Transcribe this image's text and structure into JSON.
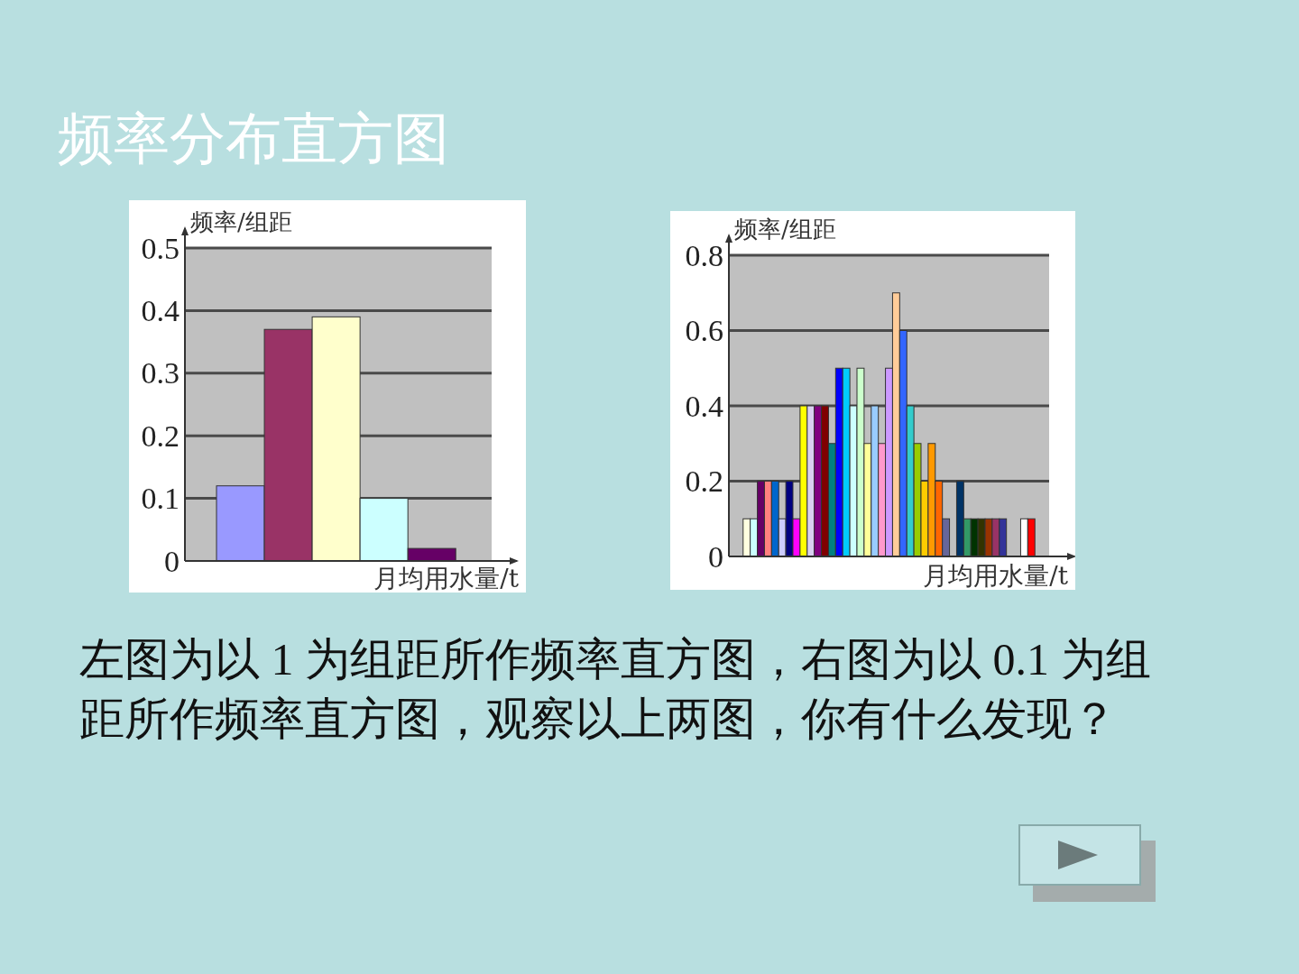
{
  "chart_data": [
    {
      "type": "other",
      "title": "频率分布直方图",
      "annotations": [
        "左图为以 1 为组距所作频率直方图，右图为以 0.1 为组距所作频率直方图，观察以上两图，你有什么发现？"
      ]
    },
    {
      "type": "bar",
      "ylabel": "频率/组距",
      "xlabel": "月均用水量/t",
      "categories": [
        null,
        null,
        null,
        null,
        null
      ],
      "values": [
        0.12,
        0.37,
        0.39,
        0.1,
        0.02
      ],
      "colors": [
        "#9999ff",
        "#993366",
        "#ffffcc",
        "#ccffff",
        "#660066"
      ],
      "ylim": [
        0,
        0.5
      ],
      "yticks": [
        0,
        0.1,
        0.2,
        0.3,
        0.4,
        0.5
      ],
      "grid": "y"
    },
    {
      "type": "bar",
      "ylabel": "频率/组距",
      "xlabel": "月均用水量/t",
      "categories": [
        null,
        null,
        null,
        null,
        null,
        null,
        null,
        null,
        null,
        null,
        null,
        null,
        null,
        null,
        null,
        null,
        null,
        null,
        null,
        null,
        null,
        null,
        null,
        null,
        null,
        null,
        null,
        null,
        null,
        null,
        null,
        null,
        null,
        null,
        null,
        null,
        null,
        null,
        null,
        null,
        null,
        null,
        null,
        null,
        null
      ],
      "values": [
        null,
        null,
        0.1,
        0.1,
        0.2,
        0.2,
        0.2,
        0.1,
        0.2,
        0.1,
        0.4,
        0.4,
        0.4,
        0.4,
        0.3,
        0.5,
        0.5,
        0.4,
        0.5,
        0.3,
        0.4,
        0.3,
        0.5,
        0.7,
        0.6,
        0.4,
        0.3,
        0.2,
        0.3,
        0.2,
        0.1,
        null,
        0.2,
        0.1,
        0.1,
        0.1,
        0.1,
        0.1,
        0.1,
        null,
        null,
        0.1,
        0.1,
        null,
        null
      ],
      "colors": [
        null,
        null,
        "#ffffe0",
        "#ccffff",
        "#660066",
        "#ff8080",
        "#0066cc",
        "#ccccff",
        "#000080",
        "#ff00ff",
        "#ffff00",
        "#d9d0f0",
        "#800080",
        "#800000",
        "#008080",
        "#0000ff",
        "#00ccff",
        "#ccffff",
        "#ccffcc",
        "#ffff99",
        "#99ccff",
        "#ff99cc",
        "#cc99ff",
        "#ffcc99",
        "#3366ff",
        "#33cccc",
        "#99cc00",
        "#ffcc00",
        "#ff9900",
        "#ff6600",
        "#666699",
        null,
        "#003366",
        "#339966",
        "#003300",
        "#333300",
        "#993300",
        "#993366",
        "#333399",
        null,
        null,
        "#ffffff",
        "#ff0000",
        null,
        null
      ],
      "ylim": [
        0,
        0.8
      ],
      "yticks": [
        0,
        0.2,
        0.4,
        0.6,
        0.8
      ],
      "grid": "y"
    }
  ]
}
